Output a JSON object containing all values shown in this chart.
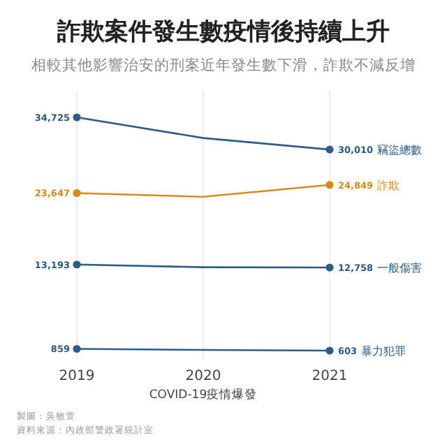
{
  "chart_data": {
    "type": "line",
    "title": "詐欺案件發生數疫情後持續上升",
    "subtitle": "相較其他影響治安的刑案近年發生數下滑，詐欺不減反增",
    "categories": [
      "2019",
      "2020",
      "2021"
    ],
    "series": [
      {
        "name": "竊盜總數",
        "color": "#2b5c8a",
        "values": [
          34725,
          31700,
          30010
        ],
        "value_labels": [
          "34,725",
          null,
          "30,010"
        ]
      },
      {
        "name": "詐欺",
        "color": "#d98b1a",
        "values": [
          23647,
          23100,
          24849
        ],
        "value_labels": [
          "23,647",
          null,
          "24,849"
        ]
      },
      {
        "name": "一般傷害",
        "color": "#2b5c8a",
        "values": [
          13193,
          12800,
          12758
        ],
        "value_labels": [
          "13,193",
          null,
          "12,758"
        ]
      },
      {
        "name": "暴力犯罪",
        "color": "#2b5c8a",
        "values": [
          859,
          700,
          603
        ],
        "value_labels": [
          "859",
          null,
          "603"
        ]
      }
    ],
    "annotations": [
      "COVID-19疫情爆發",
      "製圖：吳敏萱",
      "資料來源：內政部警政署統計室"
    ],
    "grid": "x",
    "marker": "circle"
  }
}
